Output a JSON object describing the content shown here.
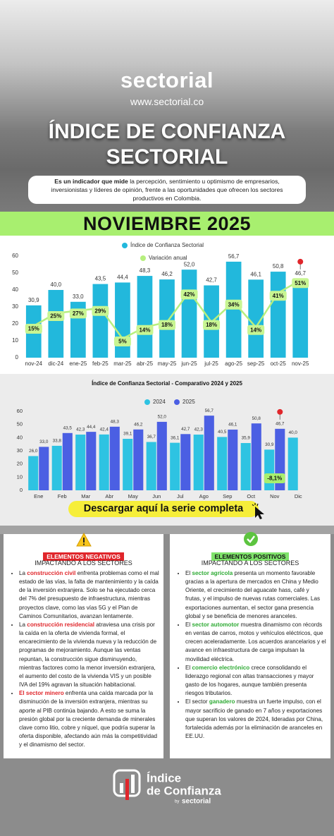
{
  "header": {
    "brand": "sectorial",
    "url": "www.sectorial.co",
    "title_line1": "ÍNDICE DE CONFIANZA",
    "title_line2": "SECTORIAL",
    "description_lead": "Es un indicador que mide",
    "description": " la percepción, sentimiento u optimismo de empresarios, inversionistas y líderes de opinión, frente a las oportunidades que ofrecen los sectores productivos en Colombia."
  },
  "period": "NOVIEMBRE 2025",
  "chart_data": [
    {
      "type": "combo",
      "categories": [
        "nov-24",
        "dic-24",
        "ene-25",
        "feb-25",
        "mar-25",
        "abr-25",
        "may-25",
        "jun-25",
        "jul-25",
        "ago-25",
        "sep-25",
        "oct-25",
        "nov-25"
      ],
      "series": [
        {
          "name": "Índice de Confianza Sectorial",
          "type": "bar",
          "color": "#22b8dc",
          "values": [
            30.9,
            40.0,
            33.0,
            43.5,
            44.4,
            48.3,
            46.2,
            52.0,
            42.7,
            56.7,
            46.1,
            50.8,
            46.7
          ],
          "value_labels": [
            "30,9",
            "40,0",
            "33,0",
            "43,5",
            "44,4",
            "48,3",
            "46,2",
            "52,0",
            "42,7",
            "56,7",
            "46,1",
            "50,8",
            "46,7"
          ]
        },
        {
          "name": "Variación anual",
          "type": "line",
          "axis": "y2",
          "color": "#b6ef7e",
          "values": [
            15,
            25,
            27,
            29,
            5,
            14,
            18,
            42,
            18,
            34,
            14,
            41,
            51
          ],
          "value_labels": [
            "15%",
            "25%",
            "27%",
            "29%",
            "5%",
            "14%",
            "18%",
            "42%",
            "18%",
            "34%",
            "14%",
            "41%",
            "51%"
          ]
        }
      ],
      "ylim": [
        0,
        60
      ],
      "yticks": [
        0,
        10,
        20,
        30,
        40,
        50,
        60
      ],
      "y2lim": [
        -10,
        70
      ]
    },
    {
      "type": "bar",
      "title": "Índice de Confianza Sectorial - Comparativo 2024 y 2025",
      "categories": [
        "Ene",
        "Feb",
        "Mar",
        "Abr",
        "May",
        "Jun",
        "Jul",
        "Ago",
        "Sep",
        "Oct",
        "Nov",
        "Dic"
      ],
      "series": [
        {
          "name": "2024",
          "color": "#2ec3e2",
          "values": [
            26.0,
            33.8,
            42.3,
            42.4,
            39.1,
            36.7,
            36.1,
            42.3,
            40.5,
            35.9,
            30.9,
            40.0
          ],
          "value_labels": [
            "26,0",
            "33,8",
            "42,3",
            "42,4",
            "39,1",
            "36,7",
            "36,1",
            "42,3",
            "40,5",
            "35,9",
            "30,9",
            "40,0"
          ]
        },
        {
          "name": "2025",
          "color": "#4b5fe3",
          "values": [
            33.0,
            43.5,
            44.4,
            48.3,
            46.2,
            52.0,
            42.7,
            56.7,
            46.1,
            50.8,
            46.7,
            null
          ],
          "value_labels": [
            "33,0",
            "43,5",
            "44,4",
            "48,3",
            "46,2",
            "52,0",
            "42,7",
            "56,7",
            "46,1",
            "50,8",
            "46,7",
            null
          ]
        }
      ],
      "ylim": [
        0,
        60
      ],
      "yticks": [
        0,
        10,
        20,
        30,
        40,
        50,
        60
      ],
      "annotation": "-8,1%"
    }
  ],
  "download_button": "Descargar aquí la serie completa",
  "negatives": {
    "tag": "ELEMENTOS NEGATIVOS",
    "subtitle": "IMPACTANDO A LOS SECTORES",
    "items": [
      [
        {
          "text": "La "
        },
        {
          "text": "construcción civil",
          "highlight": true
        },
        {
          "text": " enfrenta problemas como el mal estado de las vías, la falta de mantenimiento y la caída de la inversión extranjera. Solo se ha ejecutado cerca del 7% del presupuesto de infraestructura, mientras proyectos clave, como las vías 5G y el Plan de Caminos Comunitarios, avanzan lentamente."
        }
      ],
      [
        {
          "text": "La "
        },
        {
          "text": "construcción residencial",
          "highlight": true
        },
        {
          "text": " atraviesa una crisis por la caída en la oferta de vivienda formal, el encarecimiento de la vivienda nueva y la reducción de programas de mejoramiento. Aunque las ventas repuntan, la construcción sigue disminuyendo, mientras factores como la menor inversión extranjera, el aumento del costo de la vivienda VIS y un posible IVA del 19% agravan la situación habitacional."
        }
      ],
      [
        {
          "text": "El sector minero",
          "highlight": true
        },
        {
          "text": " enfrenta una caída marcada por la disminución de la inversión extranjera, mientras su aporte al PIB continúa bajando. A esto se suma la presión global por la creciente demanda de minerales clave como litio, cobre y níquel, que podría superar la oferta disponible, afectando aún más la competitividad y el dinamismo del sector."
        }
      ]
    ]
  },
  "positives": {
    "tag": "ELEMENTOS POSITIVOS",
    "subtitle": "IMPACTANDO A LOS SECTORES",
    "items": [
      [
        {
          "text": "El "
        },
        {
          "text": "sector agrícola",
          "highlight": true
        },
        {
          "text": " presenta un momento favorable gracias a la apertura de mercados en China y Medio Oriente, el crecimiento del aguacate hass, café y frutas, y el impulso de nuevas rutas comerciales. Las exportaciones aumentan, el sector gana presencia global y se beneficia de menores aranceles."
        }
      ],
      [
        {
          "text": "El "
        },
        {
          "text": "sector automotor",
          "highlight": true
        },
        {
          "text": " muestra dinamismo con récords en ventas de carros, motos y vehículos eléctricos, que crecen aceleradamente. Los acuerdos arancelarios y el avance en infraestructura de carga impulsan la movilidad eléctrica."
        }
      ],
      [
        {
          "text": "El "
        },
        {
          "text": "comercio electrónico",
          "highlight": true
        },
        {
          "text": " crece consolidando el liderazgo regional con altas transacciones y mayor gasto de los hogares, aunque también presenta riesgos tributarios."
        }
      ],
      [
        {
          "text": "El sector "
        },
        {
          "text": "ganadero",
          "highlight": true
        },
        {
          "text": " muestra un fuerte impulso, con el mayor sacrificio de ganado en 7 años y exportaciones que superan los valores de 2024, lideradas por China, fortalecida además por la eliminación de aranceles en EE.UU."
        }
      ]
    ]
  },
  "footer": {
    "title_line1": "Índice",
    "title_line2": "de Confianza",
    "by": "by",
    "brand": "sectorial"
  }
}
